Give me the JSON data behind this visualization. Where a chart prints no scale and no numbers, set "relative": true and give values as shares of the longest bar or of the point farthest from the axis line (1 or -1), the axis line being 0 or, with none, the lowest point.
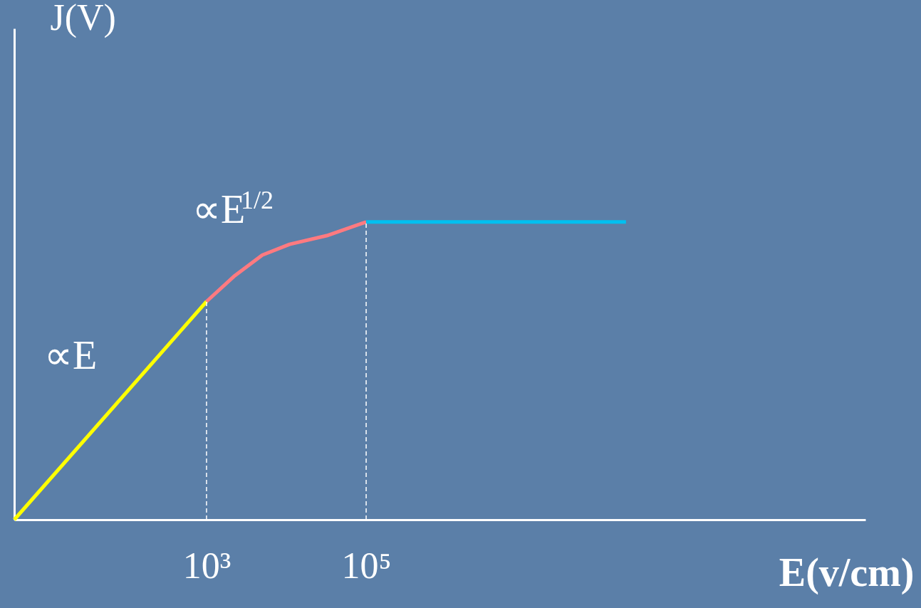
{
  "chart_data": {
    "type": "line",
    "relative": true,
    "log": "x",
    "xlabel": "E(v/cm)",
    "ylabel": "J(V)",
    "xlim": [
      3.9,
      180000000000
    ],
    "xticks": [
      {
        "value": 1000,
        "label": "10³"
      },
      {
        "value": 100000,
        "label": "10⁵"
      }
    ],
    "series": [
      {
        "color": "#ffff00",
        "x": [
          3.9,
          1000
        ],
        "values": [
          0,
          0.733
        ]
      },
      {
        "color": "#ff7a80",
        "x": [
          1000,
          2200,
          5000,
          11000,
          32000,
          100000
        ],
        "values": [
          0.733,
          0.817,
          0.889,
          0.925,
          0.954,
          1
        ]
      },
      {
        "color": "#00c0f0",
        "x": [
          100000,
          180000000
        ],
        "values": [
          1,
          1
        ]
      }
    ],
    "ref_lines": [
      {
        "axis": "x",
        "value": 1000,
        "color": "#ffffff",
        "line_style": "dashed"
      },
      {
        "axis": "x",
        "value": 100000,
        "color": "#ffffff",
        "line_style": "dashed"
      }
    ],
    "annotations": [
      "∝E",
      "∝E$^{1/2}$"
    ],
    "grid": false,
    "legend": false,
    "line_style": "solid",
    "marker": "none"
  }
}
